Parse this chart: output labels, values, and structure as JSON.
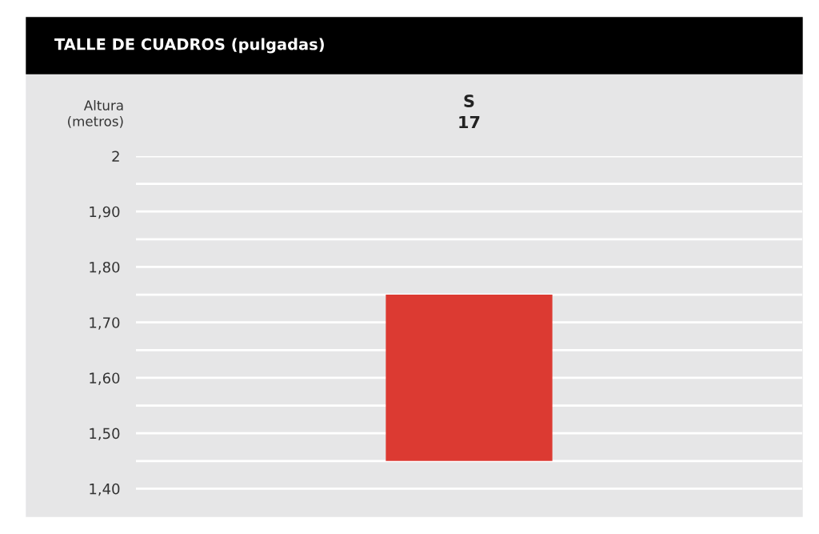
{
  "chart_data": {
    "type": "bar",
    "title": "TALLE DE CUADROS (pulgadas)",
    "ylabel": "Altura\n(metros)",
    "categories": [
      "S\n17"
    ],
    "values": [
      0.3
    ],
    "base": [
      1.45
    ],
    "color": "#dc3a32",
    "ylim": [
      1.35,
      2
    ],
    "yticks": [
      {
        "value": 1.4,
        "label": "1,40"
      },
      {
        "value": 1.45,
        "label": null
      },
      {
        "value": 1.5,
        "label": "1,50"
      },
      {
        "value": 1.55,
        "label": null
      },
      {
        "value": 1.6,
        "label": "1,60"
      },
      {
        "value": 1.65,
        "label": null
      },
      {
        "value": 1.7,
        "label": "1,70"
      },
      {
        "value": 1.75,
        "label": null
      },
      {
        "value": 1.8,
        "label": "1,80"
      },
      {
        "value": 1.85,
        "label": null
      },
      {
        "value": 1.9,
        "label": "1,90"
      },
      {
        "value": 1.95,
        "label": null
      },
      {
        "value": 2,
        "label": "2"
      }
    ],
    "grid": "y"
  }
}
